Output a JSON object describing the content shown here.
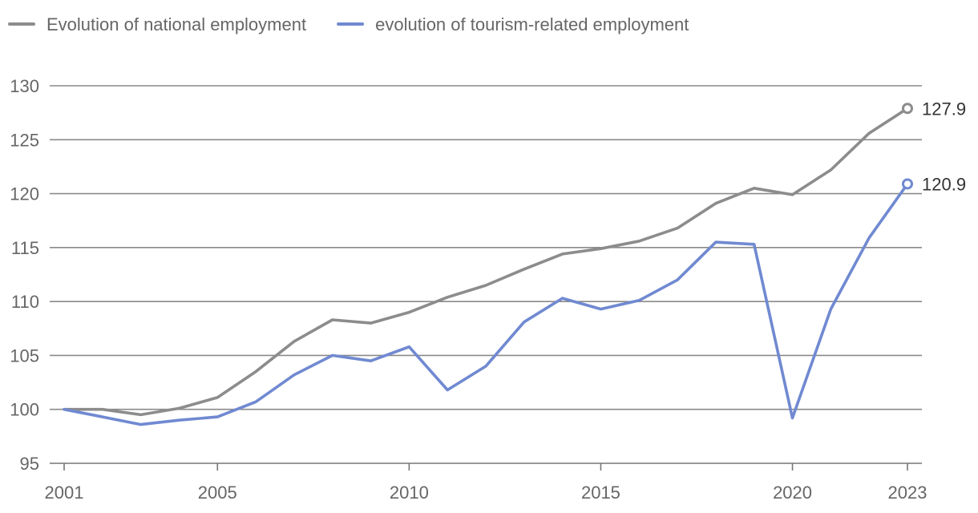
{
  "chart_data": {
    "type": "line",
    "title": "",
    "xlabel": "",
    "ylabel": "",
    "x": [
      2001,
      2002,
      2003,
      2004,
      2005,
      2006,
      2007,
      2008,
      2009,
      2010,
      2011,
      2012,
      2013,
      2014,
      2015,
      2016,
      2017,
      2018,
      2019,
      2020,
      2021,
      2022,
      2023
    ],
    "x_ticks": [
      2001,
      2005,
      2010,
      2015,
      2020,
      2023
    ],
    "y_ticks": [
      95,
      100,
      105,
      110,
      115,
      120,
      125,
      130
    ],
    "xlim": [
      2001,
      2023
    ],
    "ylim": [
      95,
      130
    ],
    "grid": "horizontal",
    "legend_position": "top-left",
    "series": [
      {
        "name": "Evolution of national employment",
        "color": "#8c8c8c",
        "values": [
          100,
          100,
          99.5,
          100.1,
          101.1,
          103.5,
          106.3,
          108.3,
          108.0,
          109.0,
          110.4,
          111.5,
          113.0,
          114.4,
          114.9,
          115.6,
          116.8,
          119.1,
          120.5,
          119.9,
          122.2,
          125.6,
          127.9
        ],
        "end_label": "127.9"
      },
      {
        "name": "evolution of tourism-related employment",
        "color": "#7089d1",
        "values": [
          100,
          99.3,
          98.6,
          99.0,
          99.3,
          100.7,
          103.2,
          105.0,
          104.5,
          105.8,
          101.8,
          104.0,
          108.1,
          110.3,
          109.3,
          110.1,
          112.0,
          115.5,
          115.3,
          99.2,
          109.3,
          115.9,
          120.9
        ],
        "end_label": "120.9"
      }
    ]
  }
}
